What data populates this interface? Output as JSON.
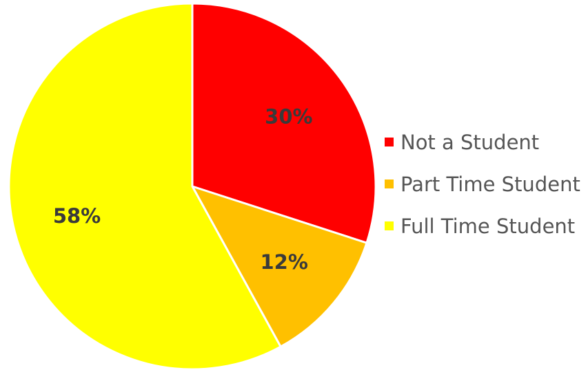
{
  "chart_data": {
    "type": "pie",
    "title": "",
    "start_angle_deg": 0,
    "direction": "clockwise",
    "legend_position": "right",
    "slices": [
      {
        "name": "Not a Student",
        "value": 30,
        "label": "30%",
        "color": "#ff0000"
      },
      {
        "name": "Part Time Student",
        "value": 12,
        "label": "12%",
        "color": "#ffc000"
      },
      {
        "name": "Full Time Student",
        "value": 58,
        "label": "58%",
        "color": "#ffff00"
      }
    ]
  }
}
